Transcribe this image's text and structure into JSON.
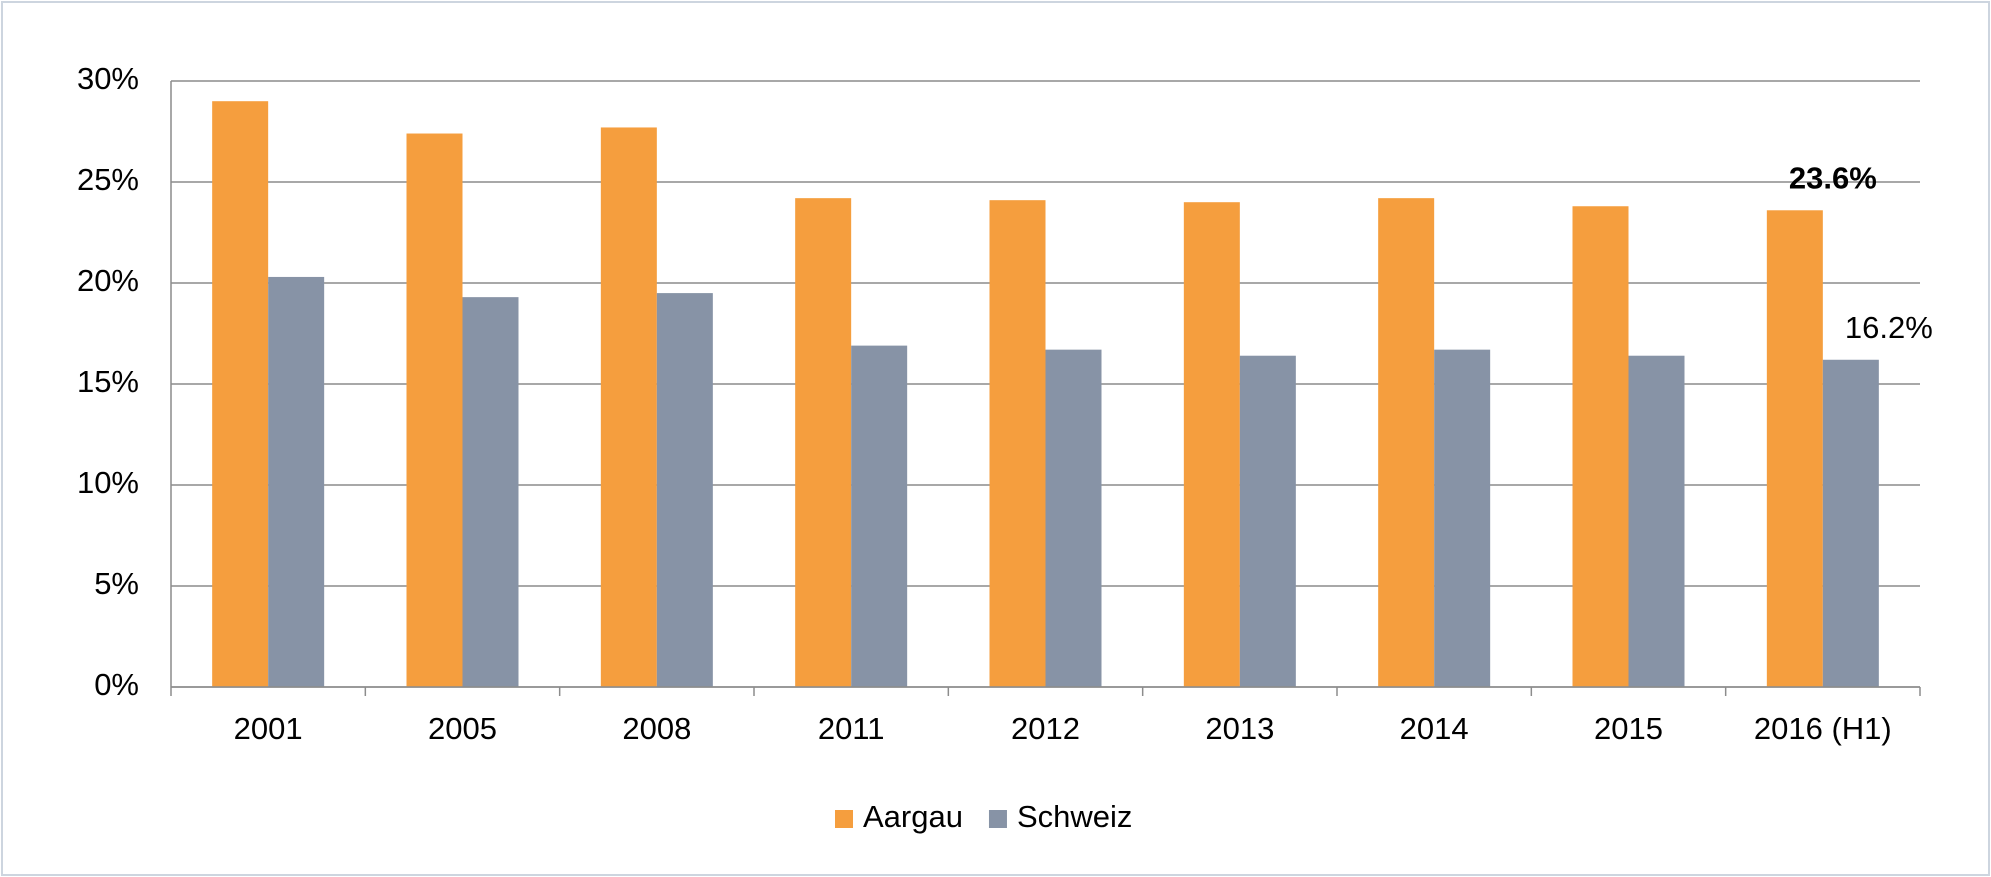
{
  "chart_data": {
    "type": "bar",
    "categories": [
      "2001",
      "2005",
      "2008",
      "2011",
      "2012",
      "2013",
      "2014",
      "2015",
      "2016 (H1)"
    ],
    "series": [
      {
        "name": "Aargau",
        "color": "#f59e3e",
        "values": [
          29.0,
          27.4,
          27.7,
          24.2,
          24.1,
          24.0,
          24.2,
          23.8,
          23.6
        ],
        "value_labels": [
          null,
          null,
          null,
          null,
          null,
          null,
          null,
          null,
          "23.6%"
        ]
      },
      {
        "name": "Schweiz",
        "color": "#8793a6",
        "values": [
          20.3,
          19.3,
          19.5,
          16.9,
          16.7,
          16.4,
          16.7,
          16.4,
          16.2
        ],
        "value_labels": [
          null,
          null,
          null,
          null,
          null,
          null,
          null,
          null,
          "16.2%"
        ]
      }
    ],
    "ylim": [
      0,
      30
    ],
    "yticks": [
      {
        "value": 0,
        "label": "0%"
      },
      {
        "value": 5,
        "label": "5%"
      },
      {
        "value": 10,
        "label": "10%"
      },
      {
        "value": 15,
        "label": "15%"
      },
      {
        "value": 20,
        "label": "20%"
      },
      {
        "value": 25,
        "label": "25%"
      },
      {
        "value": 30,
        "label": "30%"
      }
    ],
    "grid": true,
    "legend": "bottom"
  }
}
